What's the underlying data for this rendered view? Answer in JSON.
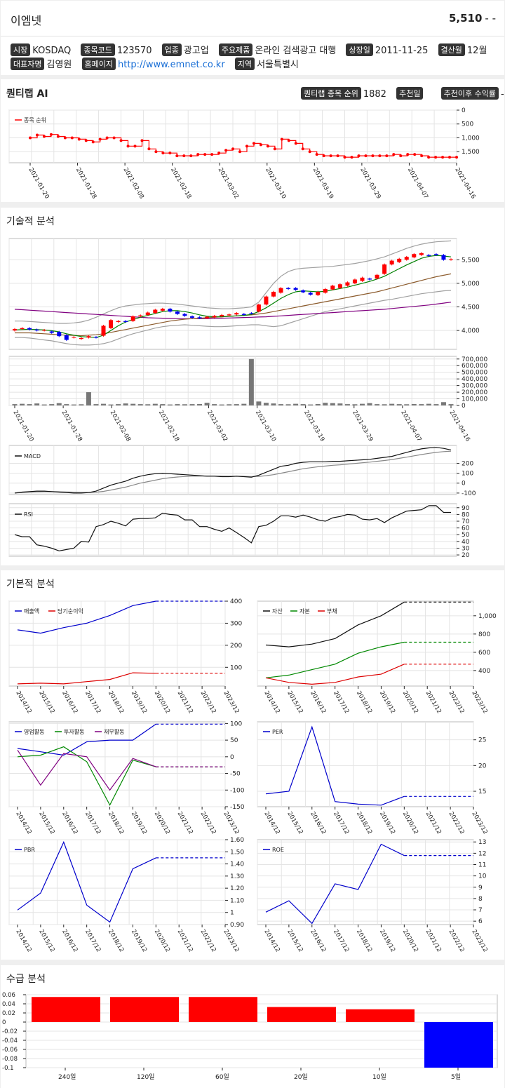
{
  "stock": {
    "name": "이엠넷",
    "price": "5,510",
    "change": "- -"
  },
  "info": [
    {
      "label": "시장",
      "value": "KOSDAQ"
    },
    {
      "label": "종목코드",
      "value": "123570"
    },
    {
      "label": "업종",
      "value": "광고업"
    },
    {
      "label": "주요제품",
      "value": "온라인 검색광고 대행"
    },
    {
      "label": "상장일",
      "value": "2011-11-25"
    },
    {
      "label": "결산월",
      "value": "12월"
    },
    {
      "label": "대표자명",
      "value": "김영원"
    },
    {
      "label": "홈페이지",
      "value": "http://www.emnet.co.kr"
    },
    {
      "label": "지역",
      "value": "서울특별시"
    }
  ],
  "quant": {
    "title": "퀀티랩 AI",
    "rank_label": "퀀티랩 종목 순위",
    "rank_value": "1882",
    "recommend_label": "추천일",
    "return_label": "추천이후 수익률",
    "return_value": "-"
  },
  "sections": {
    "technical": "기술적 분석",
    "fundamental": "기본적 분석",
    "supply": "수급 분석"
  },
  "colors": {
    "up": "#ff0000",
    "down": "#0000ee",
    "ma5": "#008000",
    "ma20": "#8b5a2b",
    "ma60": "#800080",
    "bollinger": "#a0a0a0"
  },
  "chart_data": [
    {
      "type": "line",
      "id": "rank",
      "series": [
        {
          "name": "종목 순위",
          "values": [
            1000,
            900,
            950,
            880,
            950,
            1000,
            1000,
            1050,
            1100,
            1150,
            1050,
            1000,
            1000,
            1100,
            1300,
            1300,
            1100,
            1400,
            1500,
            1550,
            1550,
            1650,
            1650,
            1650,
            1600,
            1600,
            1600,
            1550,
            1450,
            1400,
            1500,
            1300,
            1200,
            1250,
            1300,
            1400,
            1050,
            1100,
            1200,
            1400,
            1500,
            1600,
            1650,
            1650,
            1650,
            1700,
            1700,
            1650,
            1650,
            1650,
            1650,
            1650,
            1600,
            1650,
            1600,
            1600,
            1650,
            1700,
            1700,
            1700,
            1700,
            1700
          ]
        }
      ],
      "x_ticks": [
        "2021-01-20",
        "2021-01-28",
        "2021-02-08",
        "2021-02-18",
        "2021-03-02",
        "2021-03-10",
        "2021-03-19",
        "2021-03-29",
        "2021-04-07",
        "2021-04-16"
      ],
      "y_ticks": [
        "0",
        "500",
        "1,000",
        "1,500"
      ],
      "ylim": [
        0,
        1900
      ]
    },
    {
      "type": "candlestick",
      "id": "price",
      "open": [
        4000,
        4030,
        4050,
        4020,
        4000,
        3980,
        3970,
        3900,
        3850,
        3820,
        3850,
        3860,
        3890,
        4050,
        4180,
        4200,
        4200,
        4300,
        4330,
        4370,
        4420,
        4460,
        4400,
        4350,
        4300,
        4280,
        4260,
        4280,
        4300,
        4320,
        4340,
        4350,
        4370,
        4400,
        4550,
        4720,
        4800,
        4900,
        4900,
        4850,
        4800,
        4750,
        4800,
        4870,
        4900,
        4950,
        5000,
        5050,
        5100,
        5100,
        5200,
        5400,
        5450,
        5500,
        5550,
        5600,
        5600,
        5620,
        5600,
        5500
      ],
      "close": [
        4030,
        4050,
        4020,
        4000,
        4010,
        3950,
        3880,
        3800,
        3860,
        3840,
        3880,
        3850,
        4100,
        4220,
        4200,
        4180,
        4300,
        4320,
        4380,
        4440,
        4460,
        4400,
        4350,
        4310,
        4270,
        4260,
        4290,
        4310,
        4330,
        4340,
        4370,
        4330,
        4360,
        4550,
        4720,
        4820,
        4900,
        4880,
        4860,
        4810,
        4760,
        4820,
        4880,
        4950,
        4980,
        5020,
        5080,
        5120,
        5080,
        5180,
        5400,
        5480,
        5520,
        5560,
        5620,
        5640,
        5580,
        5600,
        5500,
        5510
      ],
      "volume": [
        20000,
        25000,
        20000,
        30000,
        15000,
        20000,
        35000,
        20000,
        15000,
        18000,
        200000,
        20000,
        25000,
        15000,
        20000,
        30000,
        25000,
        20000,
        18000,
        25000,
        20000,
        15000,
        20000,
        18000,
        20000,
        22000,
        40000,
        20000,
        15000,
        18000,
        20000,
        25000,
        700000,
        60000,
        40000,
        30000,
        20000,
        18000,
        25000,
        20000,
        15000,
        22000,
        40000,
        35000,
        30000,
        20000,
        18000,
        25000,
        35000,
        20000,
        18000,
        25000,
        20000,
        18000,
        22000,
        20000,
        25000,
        20000,
        50000,
        20000
      ],
      "ma5": [
        4010,
        4020,
        4025,
        4020,
        4010,
        3995,
        3970,
        3930,
        3900,
        3870,
        3860,
        3850,
        3900,
        4000,
        4100,
        4180,
        4230,
        4280,
        4320,
        4360,
        4400,
        4420,
        4420,
        4400,
        4370,
        4330,
        4300,
        4290,
        4290,
        4300,
        4310,
        4320,
        4340,
        4400,
        4480,
        4580,
        4680,
        4760,
        4820,
        4840,
        4830,
        4820,
        4830,
        4860,
        4890,
        4920,
        4960,
        5000,
        5040,
        5090,
        5150,
        5230,
        5310,
        5390,
        5460,
        5530,
        5570,
        5590,
        5580,
        5560
      ],
      "ma20": [
        3950,
        3950,
        3950,
        3940,
        3930,
        3920,
        3910,
        3900,
        3895,
        3890,
        3900,
        3910,
        3930,
        3960,
        3990,
        4020,
        4050,
        4080,
        4110,
        4140,
        4170,
        4200,
        4220,
        4240,
        4250,
        4260,
        4270,
        4280,
        4290,
        4300,
        4310,
        4320,
        4330,
        4350,
        4370,
        4400,
        4430,
        4460,
        4490,
        4520,
        4550,
        4580,
        4610,
        4640,
        4670,
        4700,
        4730,
        4760,
        4790,
        4820,
        4860,
        4900,
        4940,
        4980,
        5020,
        5060,
        5100,
        5140,
        5170,
        5200
      ],
      "ma60": [
        4450,
        4440,
        4430,
        4420,
        4410,
        4400,
        4390,
        4380,
        4370,
        4360,
        4350,
        4340,
        4330,
        4320,
        4310,
        4300,
        4290,
        4280,
        4270,
        4265,
        4260,
        4255,
        4250,
        4250,
        4250,
        4250,
        4250,
        4255,
        4260,
        4265,
        4270,
        4275,
        4280,
        4285,
        4290,
        4300,
        4310,
        4320,
        4330,
        4340,
        4350,
        4360,
        4370,
        4380,
        4390,
        4400,
        4410,
        4420,
        4430,
        4440,
        4450,
        4465,
        4480,
        4495,
        4510,
        4525,
        4540,
        4560,
        4580,
        4600
      ],
      "bb_upper": [
        4200,
        4200,
        4190,
        4180,
        4170,
        4160,
        4150,
        4150,
        4160,
        4180,
        4220,
        4280,
        4350,
        4420,
        4480,
        4520,
        4540,
        4560,
        4570,
        4580,
        4580,
        4570,
        4560,
        4540,
        4520,
        4500,
        4480,
        4470,
        4460,
        4460,
        4470,
        4480,
        4500,
        4600,
        4800,
        5000,
        5150,
        5250,
        5300,
        5320,
        5330,
        5340,
        5350,
        5360,
        5380,
        5400,
        5420,
        5450,
        5480,
        5520,
        5560,
        5620,
        5680,
        5740,
        5790,
        5830,
        5860,
        5880,
        5890,
        5900
      ],
      "bb_lower": [
        3850,
        3850,
        3840,
        3820,
        3800,
        3780,
        3750,
        3720,
        3700,
        3690,
        3690,
        3700,
        3720,
        3760,
        3820,
        3880,
        3930,
        3970,
        4010,
        4050,
        4080,
        4100,
        4110,
        4120,
        4110,
        4100,
        4090,
        4080,
        4080,
        4090,
        4100,
        4110,
        4120,
        4120,
        4100,
        4080,
        4100,
        4150,
        4200,
        4250,
        4300,
        4350,
        4400,
        4430,
        4460,
        4490,
        4520,
        4550,
        4580,
        4610,
        4640,
        4660,
        4690,
        4720,
        4750,
        4780,
        4800,
        4820,
        4840,
        4850
      ],
      "y_ticks": [
        "4,000",
        "4,500",
        "5,000",
        "5,500"
      ],
      "ylim": [
        3600,
        5950
      ]
    },
    {
      "type": "line",
      "id": "macd",
      "series": [
        {
          "name": "MACD",
          "values": [
            -100,
            -90,
            -85,
            -80,
            -80,
            -85,
            -90,
            -95,
            -100,
            -100,
            -95,
            -80,
            -50,
            -20,
            0,
            20,
            50,
            70,
            85,
            95,
            100,
            95,
            90,
            85,
            80,
            75,
            70,
            70,
            65,
            65,
            70,
            65,
            60,
            80,
            110,
            140,
            170,
            180,
            200,
            210,
            215,
            215,
            215,
            220,
            220,
            225,
            230,
            235,
            240,
            250,
            260,
            270,
            290,
            310,
            330,
            345,
            355,
            360,
            350,
            335
          ]
        },
        {
          "name": "signal",
          "values": [
            -100,
            -95,
            -90,
            -88,
            -86,
            -86,
            -87,
            -89,
            -91,
            -93,
            -94,
            -91,
            -83,
            -70,
            -55,
            -40,
            -20,
            0,
            15,
            30,
            45,
            55,
            62,
            67,
            70,
            72,
            72,
            71,
            70,
            69,
            69,
            68,
            66,
            68,
            75,
            85,
            100,
            115,
            130,
            145,
            155,
            165,
            172,
            180,
            185,
            192,
            198,
            205,
            212,
            220,
            228,
            238,
            250,
            262,
            275,
            288,
            300,
            310,
            318,
            322
          ]
        }
      ],
      "y_ticks": [
        "-100",
        "0",
        "100",
        "200"
      ],
      "ylim": [
        -115,
        380
      ]
    },
    {
      "type": "line",
      "id": "rsi",
      "series": [
        {
          "name": "RSI",
          "values": [
            50,
            47,
            47,
            35,
            33,
            30,
            26,
            28,
            30,
            40,
            39,
            62,
            65,
            70,
            67,
            63,
            73,
            74,
            74,
            75,
            82,
            80,
            79,
            72,
            72,
            62,
            62,
            58,
            55,
            60,
            53,
            46,
            38,
            62,
            64,
            70,
            78,
            78,
            76,
            79,
            76,
            72,
            70,
            75,
            77,
            80,
            79,
            73,
            72,
            74,
            68,
            75,
            80,
            85,
            86,
            87,
            93,
            93,
            83,
            83
          ]
        }
      ],
      "y_ticks": [
        "20",
        "30",
        "40",
        "50",
        "60",
        "70",
        "80",
        "90"
      ],
      "ylim": [
        18,
        96
      ]
    },
    {
      "type": "line",
      "id": "sales",
      "categories": [
        "2014/12",
        "2015/12",
        "2016/12",
        "2017/12",
        "2018/12",
        "2019/12",
        "2020/12",
        "2021/12",
        "2022/12",
        "2023/12"
      ],
      "series": [
        {
          "name": "매출액",
          "values": [
            270,
            255,
            280,
            300,
            335,
            380,
            400,
            400,
            400,
            400
          ]
        },
        {
          "name": "당기순이익",
          "values": [
            25,
            28,
            25,
            35,
            45,
            75,
            73,
            73,
            73,
            73
          ]
        }
      ],
      "y_ticks": [
        "100",
        "200",
        "300",
        "400"
      ],
      "ylim": [
        15,
        400
      ],
      "forecast_from": 6
    },
    {
      "type": "line",
      "id": "balance",
      "categories": [
        "2014/12",
        "2015/12",
        "2016/12",
        "2017/12",
        "2018/12",
        "2019/12",
        "2020/12",
        "2021/12",
        "2022/12",
        "2023/12"
      ],
      "series": [
        {
          "name": "자산",
          "values": [
            680,
            660,
            690,
            750,
            900,
            1000,
            1150,
            1150,
            1150,
            1150
          ]
        },
        {
          "name": "자본",
          "values": [
            320,
            350,
            410,
            470,
            590,
            660,
            710,
            710,
            710,
            710
          ]
        },
        {
          "name": "부채",
          "values": [
            320,
            270,
            250,
            270,
            330,
            360,
            470,
            470,
            470,
            470
          ]
        }
      ],
      "y_ticks": [
        "400",
        "600",
        "800",
        "1,000"
      ],
      "ylim": [
        230,
        1160
      ],
      "forecast_from": 6
    },
    {
      "type": "line",
      "id": "cashflow",
      "categories": [
        "2014/12",
        "2015/12",
        "2016/12",
        "2017/12",
        "2018/12",
        "2019/12",
        "2020/12",
        "2021/12",
        "2022/12",
        "2023/12"
      ],
      "series": [
        {
          "name": "영업활동",
          "values": [
            25,
            15,
            5,
            45,
            50,
            50,
            98,
            98,
            98,
            98
          ]
        },
        {
          "name": "투자활동",
          "values": [
            0,
            5,
            30,
            -15,
            -145,
            -10,
            -30,
            -30,
            -30,
            -30
          ]
        },
        {
          "name": "재무활동",
          "values": [
            20,
            -85,
            10,
            0,
            -100,
            -5,
            -30,
            -30,
            -30,
            -30
          ]
        }
      ],
      "y_ticks": [
        "-150",
        "-100",
        "-50",
        "0",
        "50",
        "100"
      ],
      "ylim": [
        -150,
        105
      ],
      "forecast_from": 6
    },
    {
      "type": "line",
      "id": "per",
      "categories": [
        "2014/12",
        "2015/12",
        "2016/12",
        "2017/12",
        "2018/12",
        "2019/12",
        "2020/12",
        "2021/12",
        "2022/12",
        "2023/12"
      ],
      "series": [
        {
          "name": "PER",
          "values": [
            14.5,
            15,
            27.5,
            13,
            12.5,
            12.3,
            14,
            14,
            14,
            14
          ]
        }
      ],
      "y_ticks": [
        "15",
        "20",
        "25"
      ],
      "ylim": [
        12,
        28.5
      ],
      "forecast_from": 6
    },
    {
      "type": "line",
      "id": "pbr",
      "categories": [
        "2014/12",
        "2015/12",
        "2016/12",
        "2017/12",
        "2018/12",
        "2019/12",
        "2020/12",
        "2021/12",
        "2022/12",
        "2023/12"
      ],
      "series": [
        {
          "name": "PBR",
          "values": [
            1.02,
            1.16,
            1.58,
            1.06,
            0.92,
            1.36,
            1.45,
            1.45,
            1.45,
            1.45
          ]
        }
      ],
      "y_ticks": [
        "0.90",
        "1",
        "1.10",
        "1.20",
        "1.30",
        "1.40",
        "1.50",
        "1.60"
      ],
      "ylim": [
        0.9,
        1.6
      ],
      "forecast_from": 6
    },
    {
      "type": "line",
      "id": "roe",
      "categories": [
        "2014/12",
        "2015/12",
        "2016/12",
        "2017/12",
        "2018/12",
        "2019/12",
        "2020/12",
        "2021/12",
        "2022/12",
        "2023/12"
      ],
      "series": [
        {
          "name": "ROE",
          "values": [
            6.8,
            7.8,
            5.8,
            9.3,
            8.8,
            12.8,
            11.8,
            11.8,
            11.8,
            11.8
          ]
        }
      ],
      "y_ticks": [
        "6",
        "7",
        "8",
        "9",
        "10",
        "11",
        "12",
        "13"
      ],
      "ylim": [
        5.7,
        13.2
      ],
      "forecast_from": 6
    },
    {
      "type": "bar",
      "id": "supply",
      "categories": [
        "240일",
        "120일",
        "60일",
        "20일",
        "10일",
        "5일"
      ],
      "values": [
        0.055,
        0.055,
        0.055,
        0.033,
        0.028,
        -0.1
      ],
      "y_ticks": [
        "0.06",
        "0.04",
        "0.02",
        "0",
        "-0.02",
        "-0.04",
        "-0.06",
        "-0.08",
        "-0.1"
      ],
      "ylim": [
        -0.1,
        0.06
      ]
    }
  ]
}
